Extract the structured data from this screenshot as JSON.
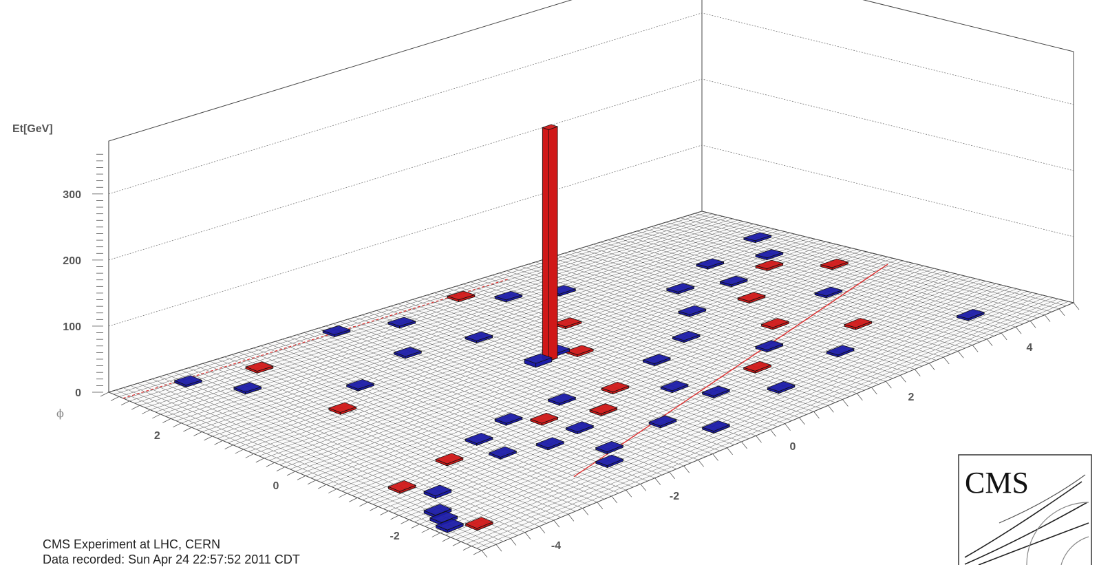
{
  "caption": {
    "line1": "CMS Experiment at LHC, CERN",
    "line2": "Data recorded: Sun Apr 24 22:57:52 2011 CDT"
  },
  "logo": {
    "text": "CMS"
  },
  "colors": {
    "ecal": "#d01818",
    "hcal": "#1c1ca8",
    "grid": "#555555",
    "track_line": "#e03030"
  },
  "chart_data": {
    "type": "lego",
    "zlabel": "Et[GeV]",
    "phi_label": "ϕ",
    "z_ticks": [
      "0",
      "100",
      "200",
      "300"
    ],
    "phi_ticks": [
      "2",
      "0",
      "-2"
    ],
    "eta_ticks": [
      "-4",
      "-2",
      "0",
      "2",
      "4"
    ],
    "zlim": [
      0,
      380
    ],
    "etalim": [
      -5,
      5
    ],
    "philim": [
      -3.14,
      3.14
    ],
    "towers": [
      {
        "eta": -0.2,
        "phi": 0.5,
        "et": 350,
        "type": "ecal"
      },
      {
        "eta": -0.4,
        "phi": 0.5,
        "et": 6,
        "type": "hcal"
      },
      {
        "eta": -0.0,
        "phi": 0.6,
        "et": 4,
        "type": "hcal"
      },
      {
        "eta": 0.2,
        "phi": 0.4,
        "et": 3,
        "type": "ecal"
      },
      {
        "eta": -4.7,
        "phi": -2.2,
        "et": 4,
        "type": "hcal"
      },
      {
        "eta": -4.6,
        "phi": -2.0,
        "et": 4,
        "type": "hcal"
      },
      {
        "eta": -4.8,
        "phi": -2.4,
        "et": 4,
        "type": "hcal"
      },
      {
        "eta": -4.5,
        "phi": -2.6,
        "et": 3,
        "type": "ecal"
      },
      {
        "eta": -4.2,
        "phi": -1.6,
        "et": 4,
        "type": "hcal"
      },
      {
        "eta": -4.4,
        "phi": -1.2,
        "et": 3,
        "type": "ecal"
      },
      {
        "eta": -3.4,
        "phi": -1.0,
        "et": 3,
        "type": "ecal"
      },
      {
        "eta": -2.7,
        "phi": -0.8,
        "et": 3,
        "type": "hcal"
      },
      {
        "eta": -2.8,
        "phi": -1.3,
        "et": 3,
        "type": "hcal"
      },
      {
        "eta": -2.2,
        "phi": -1.5,
        "et": 3,
        "type": "hcal"
      },
      {
        "eta": -2.0,
        "phi": -0.6,
        "et": 3,
        "type": "hcal"
      },
      {
        "eta": -1.7,
        "phi": -0.9,
        "et": 3,
        "type": "ecal"
      },
      {
        "eta": -1.6,
        "phi": -1.4,
        "et": 3,
        "type": "hcal"
      },
      {
        "eta": -1.8,
        "phi": -2.1,
        "et": 3,
        "type": "hcal"
      },
      {
        "eta": -2.1,
        "phi": -2.4,
        "et": 3,
        "type": "hcal"
      },
      {
        "eta": -1.1,
        "phi": -0.6,
        "et": 3,
        "type": "hcal"
      },
      {
        "eta": -1.0,
        "phi": -1.2,
        "et": 3,
        "type": "ecal"
      },
      {
        "eta": -0.8,
        "phi": -2.0,
        "et": 3,
        "type": "hcal"
      },
      {
        "eta": -0.5,
        "phi": -2.6,
        "et": 3,
        "type": "hcal"
      },
      {
        "eta": -0.4,
        "phi": -0.8,
        "et": 3,
        "type": "ecal"
      },
      {
        "eta": 0.1,
        "phi": -1.3,
        "et": 3,
        "type": "hcal"
      },
      {
        "eta": 0.3,
        "phi": -1.8,
        "et": 3,
        "type": "hcal"
      },
      {
        "eta": 0.6,
        "phi": -0.5,
        "et": 3,
        "type": "hcal"
      },
      {
        "eta": 0.9,
        "phi": -2.3,
        "et": 3,
        "type": "hcal"
      },
      {
        "eta": 1.2,
        "phi": -1.6,
        "et": 3,
        "type": "ecal"
      },
      {
        "eta": 1.4,
        "phi": -0.2,
        "et": 3,
        "type": "hcal"
      },
      {
        "eta": 1.8,
        "phi": -1.2,
        "et": 3,
        "type": "hcal"
      },
      {
        "eta": 2.1,
        "phi": 0.4,
        "et": 3,
        "type": "hcal"
      },
      {
        "eta": 2.4,
        "phi": -0.7,
        "et": 3,
        "type": "ecal"
      },
      {
        "eta": 2.6,
        "phi": 1.1,
        "et": 3,
        "type": "hcal"
      },
      {
        "eta": 2.9,
        "phi": 0.2,
        "et": 3,
        "type": "ecal"
      },
      {
        "eta": 3.2,
        "phi": 0.8,
        "et": 3,
        "type": "hcal"
      },
      {
        "eta": 3.5,
        "phi": 1.5,
        "et": 3,
        "type": "hcal"
      },
      {
        "eta": 3.6,
        "phi": -0.4,
        "et": 3,
        "type": "hcal"
      },
      {
        "eta": 3.9,
        "phi": 0.9,
        "et": 3,
        "type": "ecal"
      },
      {
        "eta": 4.2,
        "phi": 1.2,
        "et": 3,
        "type": "hcal"
      },
      {
        "eta": 4.4,
        "phi": 0.3,
        "et": 3,
        "type": "ecal"
      },
      {
        "eta": 4.6,
        "phi": 1.8,
        "et": 3,
        "type": "hcal"
      },
      {
        "eta": 1.0,
        "phi": 2.4,
        "et": 3,
        "type": "hcal"
      },
      {
        "eta": 0.6,
        "phi": 2.8,
        "et": 3,
        "type": "ecal"
      },
      {
        "eta": -0.6,
        "phi": 2.6,
        "et": 3,
        "type": "hcal"
      },
      {
        "eta": 1.6,
        "phi": 2.1,
        "et": 3,
        "type": "hcal"
      },
      {
        "eta": -1.4,
        "phi": 2.9,
        "et": 3,
        "type": "hcal"
      },
      {
        "eta": -3.0,
        "phi": 2.6,
        "et": 3,
        "type": "ecal"
      },
      {
        "eta": -3.6,
        "phi": 2.2,
        "et": 3,
        "type": "hcal"
      },
      {
        "eta": -4.0,
        "phi": 2.8,
        "et": 3,
        "type": "hcal"
      },
      {
        "eta": 2.2,
        "phi": -2.0,
        "et": 3,
        "type": "hcal"
      },
      {
        "eta": 3.0,
        "phi": -1.5,
        "et": 3,
        "type": "ecal"
      },
      {
        "eta": 4.0,
        "phi": -2.4,
        "et": 3,
        "type": "hcal"
      },
      {
        "eta": -2.5,
        "phi": 1.4,
        "et": 3,
        "type": "hcal"
      },
      {
        "eta": -3.2,
        "phi": 1.0,
        "et": 3,
        "type": "ecal"
      },
      {
        "eta": -1.3,
        "phi": 1.8,
        "et": 3,
        "type": "hcal"
      },
      {
        "eta": 0.8,
        "phi": 1.2,
        "et": 3,
        "type": "ecal"
      },
      {
        "eta": -0.3,
        "phi": 1.6,
        "et": 3,
        "type": "hcal"
      }
    ]
  }
}
